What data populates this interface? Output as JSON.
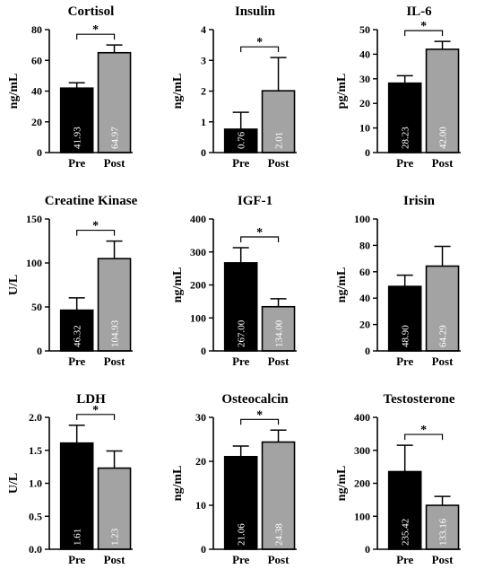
{
  "chart_data": [
    {
      "type": "bar",
      "title": "Cortisol",
      "ylabel": "ng/mL",
      "ylim": [
        0,
        80
      ],
      "yticks": [
        0,
        20,
        40,
        60,
        80
      ],
      "categories": [
        "Pre",
        "Post"
      ],
      "values": [
        41.93,
        64.97
      ],
      "errors": [
        3.5,
        5.0
      ],
      "value_labels": [
        "41.93",
        "64.97"
      ],
      "significance": "*",
      "colors": [
        "#000000",
        "#a3a3a3"
      ]
    },
    {
      "type": "bar",
      "title": "Insulin",
      "ylabel": "ng/mL",
      "ylim": [
        0,
        4
      ],
      "yticks": [
        0,
        1,
        2,
        3,
        4
      ],
      "categories": [
        "Pre",
        "Post"
      ],
      "values": [
        0.76,
        2.01
      ],
      "errors": [
        0.55,
        1.08
      ],
      "value_labels": [
        "0.76",
        "2.01"
      ],
      "significance": "*",
      "colors": [
        "#000000",
        "#a3a3a3"
      ]
    },
    {
      "type": "bar",
      "title": "IL-6",
      "ylabel": "pg/mL",
      "ylim": [
        0,
        50
      ],
      "yticks": [
        0,
        10,
        20,
        30,
        40,
        50
      ],
      "categories": [
        "Pre",
        "Post"
      ],
      "values": [
        28.23,
        42.0
      ],
      "errors": [
        3.0,
        3.2
      ],
      "value_labels": [
        "28.23",
        "42.00"
      ],
      "significance": "*",
      "colors": [
        "#000000",
        "#a3a3a3"
      ]
    },
    {
      "type": "bar",
      "title": "Creatine Kinase",
      "ylabel": "U/L",
      "ylim": [
        0,
        150
      ],
      "yticks": [
        0,
        50,
        100,
        150
      ],
      "categories": [
        "Pre",
        "Post"
      ],
      "values": [
        46.32,
        104.93
      ],
      "errors": [
        14.0,
        20.0
      ],
      "value_labels": [
        "46.32",
        "104.93"
      ],
      "significance": "*",
      "colors": [
        "#000000",
        "#a3a3a3"
      ]
    },
    {
      "type": "bar",
      "title": "IGF-1",
      "ylabel": "ng/mL",
      "ylim": [
        0,
        400
      ],
      "yticks": [
        0,
        100,
        200,
        300,
        400
      ],
      "categories": [
        "Pre",
        "Post"
      ],
      "values": [
        267.0,
        134.0
      ],
      "errors": [
        46.0,
        24.0
      ],
      "value_labels": [
        "267.00",
        "134.00"
      ],
      "significance": "*",
      "colors": [
        "#000000",
        "#a3a3a3"
      ]
    },
    {
      "type": "bar",
      "title": "Irisin",
      "ylabel": "ng/mL",
      "ylim": [
        0,
        100
      ],
      "yticks": [
        0,
        20,
        40,
        60,
        80,
        100
      ],
      "categories": [
        "Pre",
        "Post"
      ],
      "values": [
        48.9,
        64.29
      ],
      "errors": [
        8.5,
        15.0
      ],
      "value_labels": [
        "48.90",
        "64.29"
      ],
      "significance": "",
      "colors": [
        "#000000",
        "#a3a3a3"
      ]
    },
    {
      "type": "bar",
      "title": "LDH",
      "ylabel": "U/L",
      "ylim": [
        0,
        2.0
      ],
      "yticks": [
        0.0,
        0.5,
        1.0,
        1.5,
        2.0
      ],
      "categories": [
        "Pre",
        "Post"
      ],
      "values": [
        1.61,
        1.23
      ],
      "errors": [
        0.27,
        0.26
      ],
      "value_labels": [
        "1.61",
        "1.23"
      ],
      "significance": "*",
      "colors": [
        "#000000",
        "#a3a3a3"
      ]
    },
    {
      "type": "bar",
      "title": "Osteocalcin",
      "ylabel": "ng/mL",
      "ylim": [
        0,
        30
      ],
      "yticks": [
        0,
        10,
        20,
        30
      ],
      "categories": [
        "Pre",
        "Post"
      ],
      "values": [
        21.06,
        24.38
      ],
      "errors": [
        2.4,
        2.7
      ],
      "value_labels": [
        "21.06",
        "24.38"
      ],
      "significance": "*",
      "colors": [
        "#000000",
        "#a3a3a3"
      ]
    },
    {
      "type": "bar",
      "title": "Testosterone",
      "ylabel": "ng/mL",
      "ylim": [
        0,
        400
      ],
      "yticks": [
        0,
        100,
        200,
        300,
        400
      ],
      "categories": [
        "Pre",
        "Post"
      ],
      "values": [
        235.42,
        133.16
      ],
      "errors": [
        80.0,
        27.0
      ],
      "value_labels": [
        "235.42",
        "133.16"
      ],
      "significance": "*",
      "colors": [
        "#000000",
        "#a3a3a3"
      ]
    }
  ]
}
